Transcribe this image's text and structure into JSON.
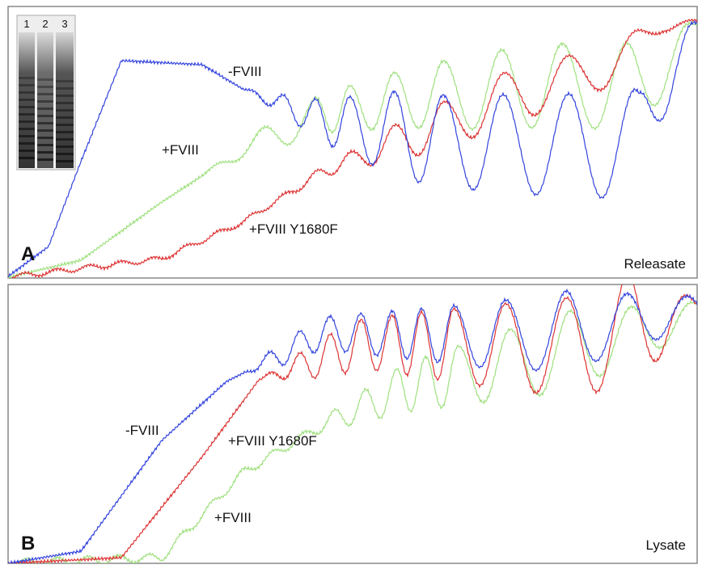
{
  "gel": {
    "lanes": [
      "1",
      "2",
      "3"
    ]
  },
  "panels": [
    {
      "letter": "A",
      "caption": "Releasate",
      "labels": [
        "-FVIII",
        "+FVIII",
        "+FVIII Y1680F"
      ]
    },
    {
      "letter": "B",
      "caption": "Lysate",
      "labels": [
        "-FVIII",
        "+FVIII Y1680F",
        "+FVIII"
      ]
    }
  ]
}
